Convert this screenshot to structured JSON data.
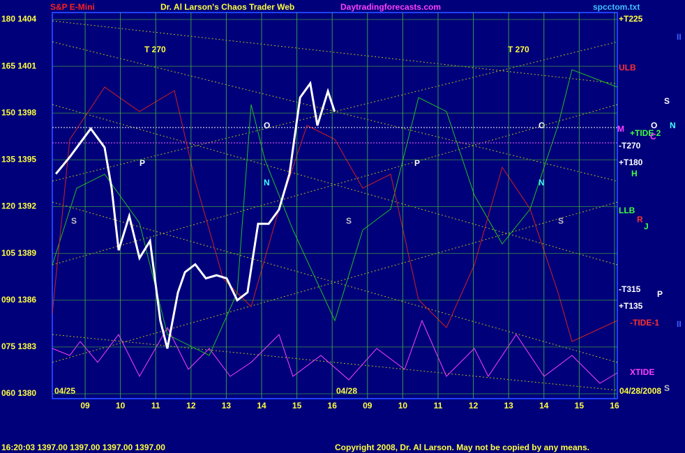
{
  "chart_data": {
    "type": "line",
    "title": "Dr. Al Larson's Chaos Trader Web",
    "instrument": "S&P E-Mini",
    "website": "Daytradingforecasts.com",
    "file": "spcctom.txt",
    "quote": "16:20:03  1397.00  1397.00  1397.00  1397.00",
    "copyright": "Copyright 2008, Dr. Al Larson. May not be copied by any means.",
    "color": "#ffffff",
    "grid": true,
    "x": [
      -0.83,
      -0.43,
      0.16,
      0.55,
      0.75,
      0.95,
      1.25,
      1.54,
      1.84,
      2.13,
      2.33,
      2.63,
      2.83,
      3.12,
      3.42,
      3.72,
      4.01,
      4.31,
      4.6,
      4.9,
      5.2,
      5.49,
      5.79,
      6.09,
      6.38,
      6.58,
      6.88,
      7.07
    ],
    "values": [
      1394.1,
      1395.2,
      1397.0,
      1395.8,
      1393.2,
      1389.2,
      1391.4,
      1388.7,
      1389.8,
      1384.7,
      1382.9,
      1386.5,
      1387.8,
      1388.3,
      1387.4,
      1387.6,
      1387.4,
      1386.0,
      1386.5,
      1390.9,
      1390.9,
      1391.8,
      1394.1,
      1399.0,
      1399.9,
      1397.2,
      1399.4,
      1398.1
    ],
    "xlim": [
      -0.93,
      15.08
    ],
    "xticks": [
      {
        "value": 0,
        "label": "09"
      },
      {
        "value": 1,
        "label": "10"
      },
      {
        "value": 2,
        "label": "11"
      },
      {
        "value": 3,
        "label": "12"
      },
      {
        "value": 4,
        "label": "13"
      },
      {
        "value": 5,
        "label": "14"
      },
      {
        "value": 6,
        "label": "15"
      },
      {
        "value": 7,
        "label": "16"
      },
      {
        "value": 8,
        "label": "09"
      },
      {
        "value": 9,
        "label": "10"
      },
      {
        "value": 10,
        "label": "11"
      },
      {
        "value": 11,
        "label": "12"
      },
      {
        "value": 12,
        "label": "13"
      },
      {
        "value": 13,
        "label": "14"
      },
      {
        "value": 14,
        "label": "15"
      },
      {
        "value": 15,
        "label": "16"
      }
    ],
    "ylim": [
      1380,
      1404
    ],
    "yticks": [
      {
        "value": 1380,
        "label": "060 1380"
      },
      {
        "value": 1383,
        "label": "075 1383"
      },
      {
        "value": 1386,
        "label": "090 1386"
      },
      {
        "value": 1389,
        "label": "105 1389"
      },
      {
        "value": 1392,
        "label": "120 1392"
      },
      {
        "value": 1395,
        "label": "135 1395"
      },
      {
        "value": 1398,
        "label": "150 1398"
      },
      {
        "value": 1401,
        "label": "165 1401"
      },
      {
        "value": 1404,
        "label": "180 1404"
      }
    ],
    "annotations": [
      "T 270",
      "T 270",
      "04/25",
      "04/28",
      "04/28/2008",
      "+T225",
      "ULB",
      "M",
      "+TIDE 2",
      "O",
      "N",
      "S",
      "C",
      "-T270",
      "+T180",
      "H",
      "LLB",
      "R",
      "J",
      "-T315",
      "+T135",
      "P",
      "-TIDE-1",
      "II",
      "II",
      "XTIDE",
      "S",
      "O",
      "P",
      "S",
      "N",
      "O",
      "P",
      "N",
      "S",
      "S"
    ]
  }
}
